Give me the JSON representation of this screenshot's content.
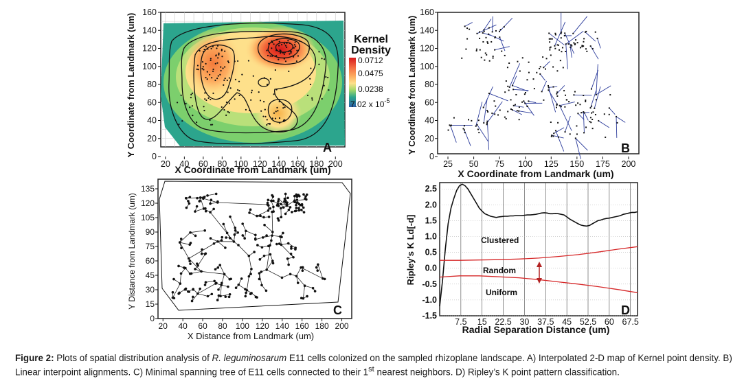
{
  "caption": {
    "label": "Figure 2:",
    "pre": " Plots of spatial distribution analysis of ",
    "species": "R. leguminosarum",
    "post1": " E11 cells colonized on the sampled rhizoplane landscape. A) Interpolated 2-D map of Kernel point density. B) Linear interpoint alignments. C) Minimal spanning tree of E11 cells connected to their 1",
    "sup": "st",
    "post2": " nearest neighbors. D) Ripley’s K point pattern classification."
  },
  "chart_data": [
    {
      "type": "heatmap",
      "panel_letter": "A",
      "xlabel": "X Coordinate from Landmark (um)",
      "ylabel": "Y Coordinate from Landmark (um)",
      "xlim": [
        15,
        210
      ],
      "ylim": [
        0,
        160
      ],
      "x_ticks": [
        "20",
        "40",
        "60",
        "80",
        "100",
        "120",
        "140",
        "160",
        "180",
        "200"
      ],
      "y_ticks": [
        "0",
        "20",
        "40",
        "60",
        "80",
        "100",
        "120",
        "140",
        "160"
      ],
      "legend": {
        "title_line1": "Kernel",
        "title_line2": "Density",
        "labels": [
          "0.0712",
          "0.0475",
          "0.0238",
          "7.02 x 10"
        ],
        "min_exponent": "-5",
        "values": [
          0.0712,
          0.0475,
          0.0238,
          7.02e-05
        ]
      },
      "hotspots": [
        {
          "x": 145,
          "y": 120,
          "level": 0.0712
        },
        {
          "x": 68,
          "y": 105,
          "level": 0.05
        },
        {
          "x": 135,
          "y": 48,
          "level": 0.045
        }
      ]
    },
    {
      "type": "scatter",
      "panel_letter": "B",
      "xlabel": "X Coordinate from Landmark (um)",
      "ylabel": "Y Coordinate from Landmark (um)",
      "xlim": [
        15,
        210
      ],
      "ylim": [
        0,
        160
      ],
      "x_ticks": [
        "25",
        "50",
        "75",
        "100",
        "125",
        "150",
        "175",
        "200"
      ],
      "y_ticks": [
        "0",
        "20",
        "40",
        "60",
        "80",
        "100",
        "120",
        "140",
        "160"
      ]
    },
    {
      "type": "scatter",
      "panel_letter": "C",
      "xlabel": "X Distance from Landmark (um)",
      "ylabel": "Y Distance from Landmark (um)",
      "xlim": [
        15,
        210
      ],
      "ylim": [
        0,
        145
      ],
      "x_ticks": [
        "20",
        "40",
        "60",
        "80",
        "100",
        "120",
        "140",
        "160",
        "180",
        "200"
      ],
      "y_ticks": [
        "0",
        "15",
        "30",
        "45",
        "60",
        "75",
        "90",
        "105",
        "120",
        "135"
      ]
    },
    {
      "type": "line",
      "panel_letter": "D",
      "xlabel": "Radial Separation Distance (um)",
      "ylabel": "Ripley's K Ld[-d]",
      "xlim": [
        0,
        70
      ],
      "ylim": [
        -1.5,
        2.7
      ],
      "x_ticks": [
        "7.5",
        "15",
        "22.5",
        "30",
        "37.5",
        "45",
        "52.5",
        "60",
        "67.5"
      ],
      "y_ticks": [
        "2.5",
        "2.0",
        "1.5",
        "1.0",
        "0.5",
        "0.0",
        "-0.5",
        "-1.0",
        "-1.5"
      ],
      "annotations": [
        "Clustered",
        "Random",
        "Uniform"
      ],
      "series": [
        {
          "values_x": [
            0,
            1,
            2,
            3,
            4,
            5,
            6,
            7,
            8,
            9,
            10,
            11,
            12,
            13,
            14,
            15,
            16,
            17,
            18,
            19,
            20,
            21,
            22,
            23,
            24,
            25,
            26,
            27,
            28,
            29,
            30,
            31,
            32,
            33,
            34,
            35,
            36,
            37,
            38,
            39,
            40,
            41,
            42,
            43,
            44,
            45,
            46,
            47,
            48,
            49,
            50,
            51,
            52,
            53,
            54,
            55,
            56,
            57,
            58,
            59,
            60,
            61,
            62,
            63,
            64,
            65,
            66,
            67,
            68,
            69,
            70
          ],
          "values_y": [
            -1.2,
            -0.4,
            0.6,
            1.4,
            1.9,
            2.2,
            2.45,
            2.6,
            2.65,
            2.6,
            2.5,
            2.35,
            2.2,
            2.05,
            1.9,
            1.8,
            1.72,
            1.68,
            1.64,
            1.62,
            1.6,
            1.62,
            1.63,
            1.64,
            1.64,
            1.65,
            1.65,
            1.66,
            1.66,
            1.66,
            1.67,
            1.68,
            1.68,
            1.69,
            1.7,
            1.72,
            1.74,
            1.75,
            1.74,
            1.72,
            1.72,
            1.73,
            1.72,
            1.7,
            1.68,
            1.62,
            1.55,
            1.5,
            1.45,
            1.4,
            1.36,
            1.34,
            1.33,
            1.35,
            1.4,
            1.45,
            1.5,
            1.52,
            1.55,
            1.57,
            1.58,
            1.6,
            1.62,
            1.64,
            1.66,
            1.7,
            1.72,
            1.74,
            1.76,
            1.76,
            1.78
          ]
        },
        {
          "values_x": [
            0,
            7,
            14,
            21,
            28,
            35,
            42,
            49,
            56,
            63,
            70
          ],
          "values_y": [
            0.25,
            0.25,
            0.26,
            0.27,
            0.29,
            0.32,
            0.37,
            0.43,
            0.51,
            0.6,
            0.68
          ]
        },
        {
          "values_x": [
            0,
            7,
            14,
            21,
            28,
            35,
            42,
            49,
            56,
            63,
            70
          ],
          "values_y": [
            -0.28,
            -0.24,
            -0.24,
            -0.27,
            -0.3,
            -0.36,
            -0.43,
            -0.5,
            -0.58,
            -0.67,
            -0.77
          ]
        }
      ]
    }
  ]
}
